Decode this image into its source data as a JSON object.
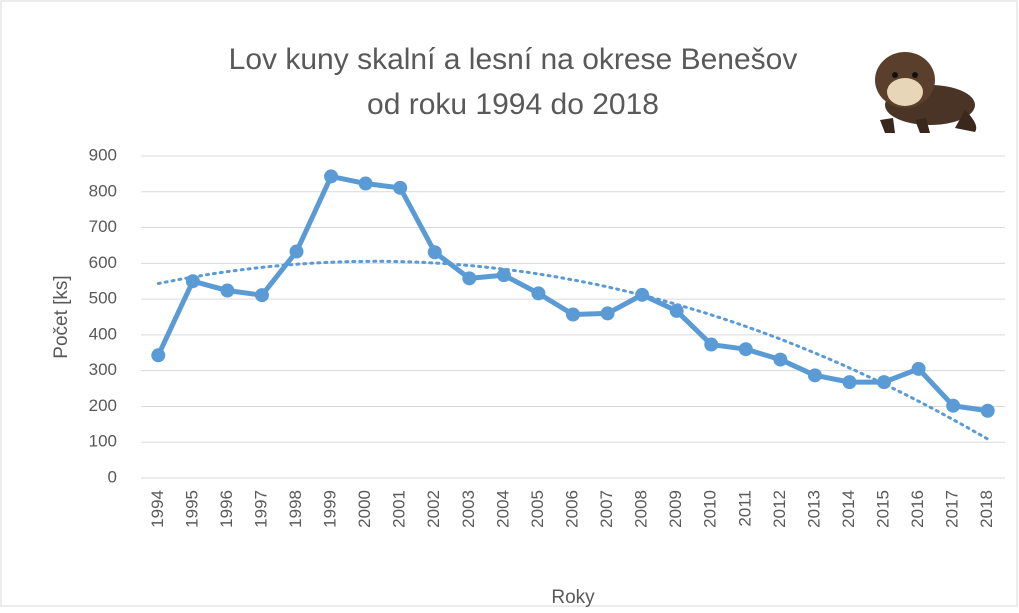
{
  "chart_data": {
    "type": "line",
    "title": [
      "Lov kuny skalní a lesní na okrese Benešov",
      "od roku 1994 do 2018"
    ],
    "x_label": "Roky",
    "y_label": "Počet [ks]",
    "categories": [
      "1994",
      "1995",
      "1996",
      "1997",
      "1998",
      "1999",
      "2000",
      "2001",
      "2002",
      "2003",
      "2004",
      "2005",
      "2006",
      "2007",
      "2008",
      "2009",
      "2010",
      "2011",
      "2012",
      "2013",
      "2014",
      "2015",
      "2016",
      "2017",
      "2018"
    ],
    "values": [
      343,
      550,
      524,
      511,
      633,
      843,
      823,
      811,
      631,
      558,
      567,
      516,
      457,
      460,
      512,
      467,
      373,
      360,
      331,
      287,
      268,
      268,
      305,
      202,
      188
    ],
    "color": "#5b9bd5",
    "trendline": {
      "type": "polynomial",
      "order": 2,
      "color": "#5b9bd5"
    },
    "ylim": [
      0,
      900
    ],
    "yticks": [
      0,
      100,
      200,
      300,
      400,
      500,
      600,
      700,
      800,
      900
    ],
    "grid": true
  }
}
